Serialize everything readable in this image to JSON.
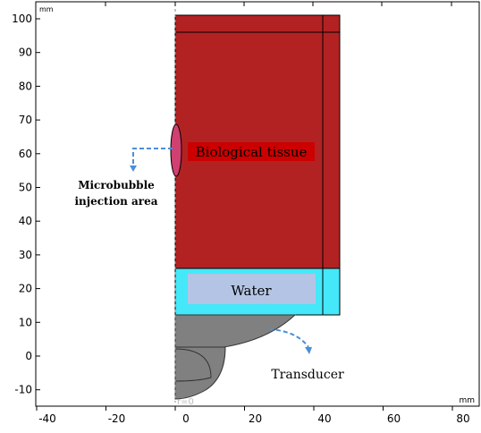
{
  "axes": {
    "x_unit": "mm",
    "y_unit": "mm",
    "x_ticks": [
      "-40",
      "-20",
      "0",
      "20",
      "40",
      "60",
      "80"
    ],
    "y_ticks": [
      "100",
      "90",
      "80",
      "70",
      "60",
      "50",
      "40",
      "30",
      "20",
      "10",
      "0",
      "-10"
    ],
    "axis_label": "r=0"
  },
  "labels": {
    "tissue": "Biological tissue",
    "water": "Water",
    "injection": [
      "Microbubble",
      "injection area"
    ],
    "transducer": "Transducer"
  },
  "colors": {
    "tissue": "#b22222",
    "tissue_label_bg": "#cc0000",
    "water": "#44e8f8",
    "water_label_bg": "#b4c4e4",
    "transducer": "#808080",
    "injection": "#d04070",
    "arrow": "#4a8fd8"
  }
}
